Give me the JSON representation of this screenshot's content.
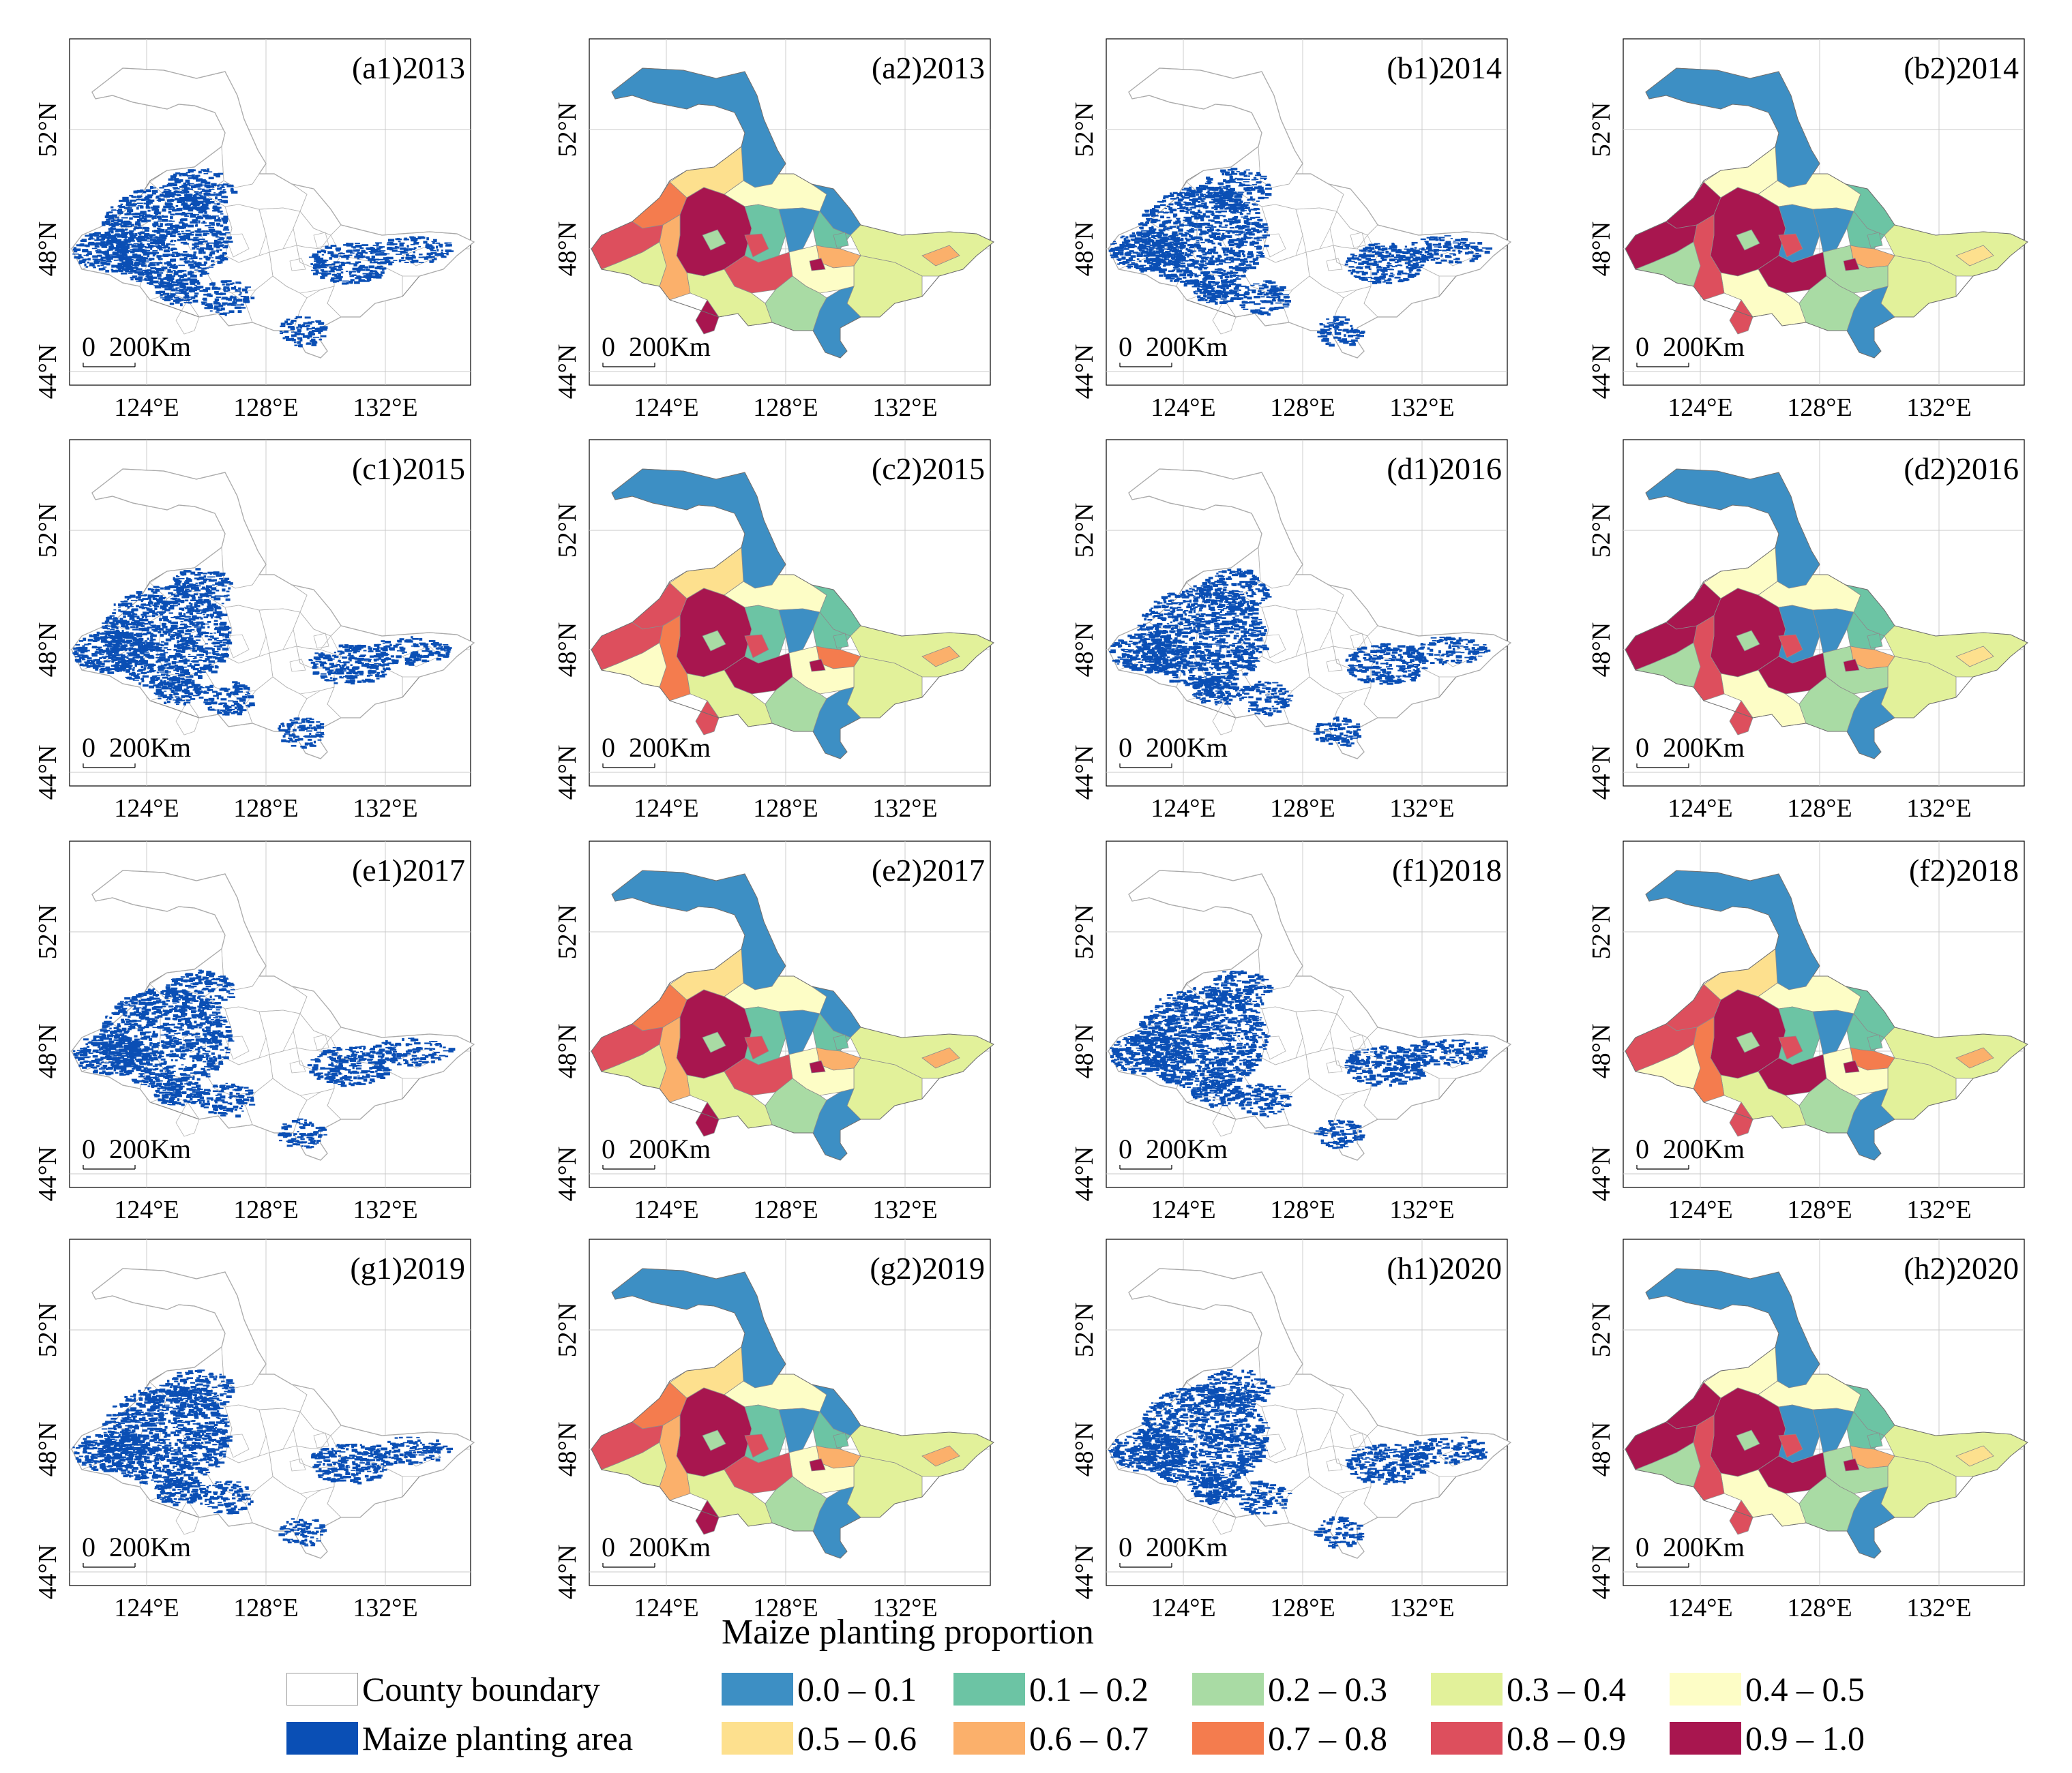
{
  "figure": {
    "axis_labels": {
      "lat": [
        "52°N",
        "48°N",
        "44°N"
      ],
      "lon": [
        "124°E",
        "128°E",
        "132°E"
      ]
    },
    "scalebar": {
      "zero": "0",
      "label": "200Km"
    },
    "panels": [
      {
        "title": "(a1)2013",
        "kind": "area"
      },
      {
        "title": "(a2)2013",
        "kind": "prop",
        "scheme": 0
      },
      {
        "title": "(b1)2014",
        "kind": "area"
      },
      {
        "title": "(b2)2014",
        "kind": "prop",
        "scheme": 1
      },
      {
        "title": "(c1)2015",
        "kind": "area"
      },
      {
        "title": "(c2)2015",
        "kind": "prop",
        "scheme": 2
      },
      {
        "title": "(d1)2016",
        "kind": "area"
      },
      {
        "title": "(d2)2016",
        "kind": "prop",
        "scheme": 1
      },
      {
        "title": "(e1)2017",
        "kind": "area"
      },
      {
        "title": "(e2)2017",
        "kind": "prop",
        "scheme": 0
      },
      {
        "title": "(f1)2018",
        "kind": "area"
      },
      {
        "title": "(f2)2018",
        "kind": "prop",
        "scheme": 2
      },
      {
        "title": "(g1)2019",
        "kind": "area"
      },
      {
        "title": "(g2)2019",
        "kind": "prop",
        "scheme": 0
      },
      {
        "title": "(h1)2020",
        "kind": "area"
      },
      {
        "title": "(h2)2020",
        "kind": "prop",
        "scheme": 1
      }
    ]
  },
  "legend": {
    "title": "Maize planting proportion",
    "county_boundary": "County boundary",
    "maize_area": "Maize planting area",
    "maize_color": "#0a4fb5",
    "classes": [
      {
        "label": "0.0 –  0.1",
        "color": "#3d8fc4"
      },
      {
        "label": "0.1 – 0.2",
        "color": "#6cc4a4"
      },
      {
        "label": "0.2 – 0.3",
        "color": "#a9dba4"
      },
      {
        "label": "0.3 – 0.4",
        "color": "#e2f19a"
      },
      {
        "label": "0.4 – 0.5",
        "color": "#fdfdc6"
      },
      {
        "label": "0.5 – 0.6",
        "color": "#fde08e"
      },
      {
        "label": "0.6 – 0.7",
        "color": "#fbb06b"
      },
      {
        "label": "0.7 – 0.8",
        "color": "#f47c4e"
      },
      {
        "label": "0.8 – 0.9",
        "color": "#dd4f5d"
      },
      {
        "label": "0.9 – 1.0",
        "color": "#a8164f"
      }
    ]
  }
}
